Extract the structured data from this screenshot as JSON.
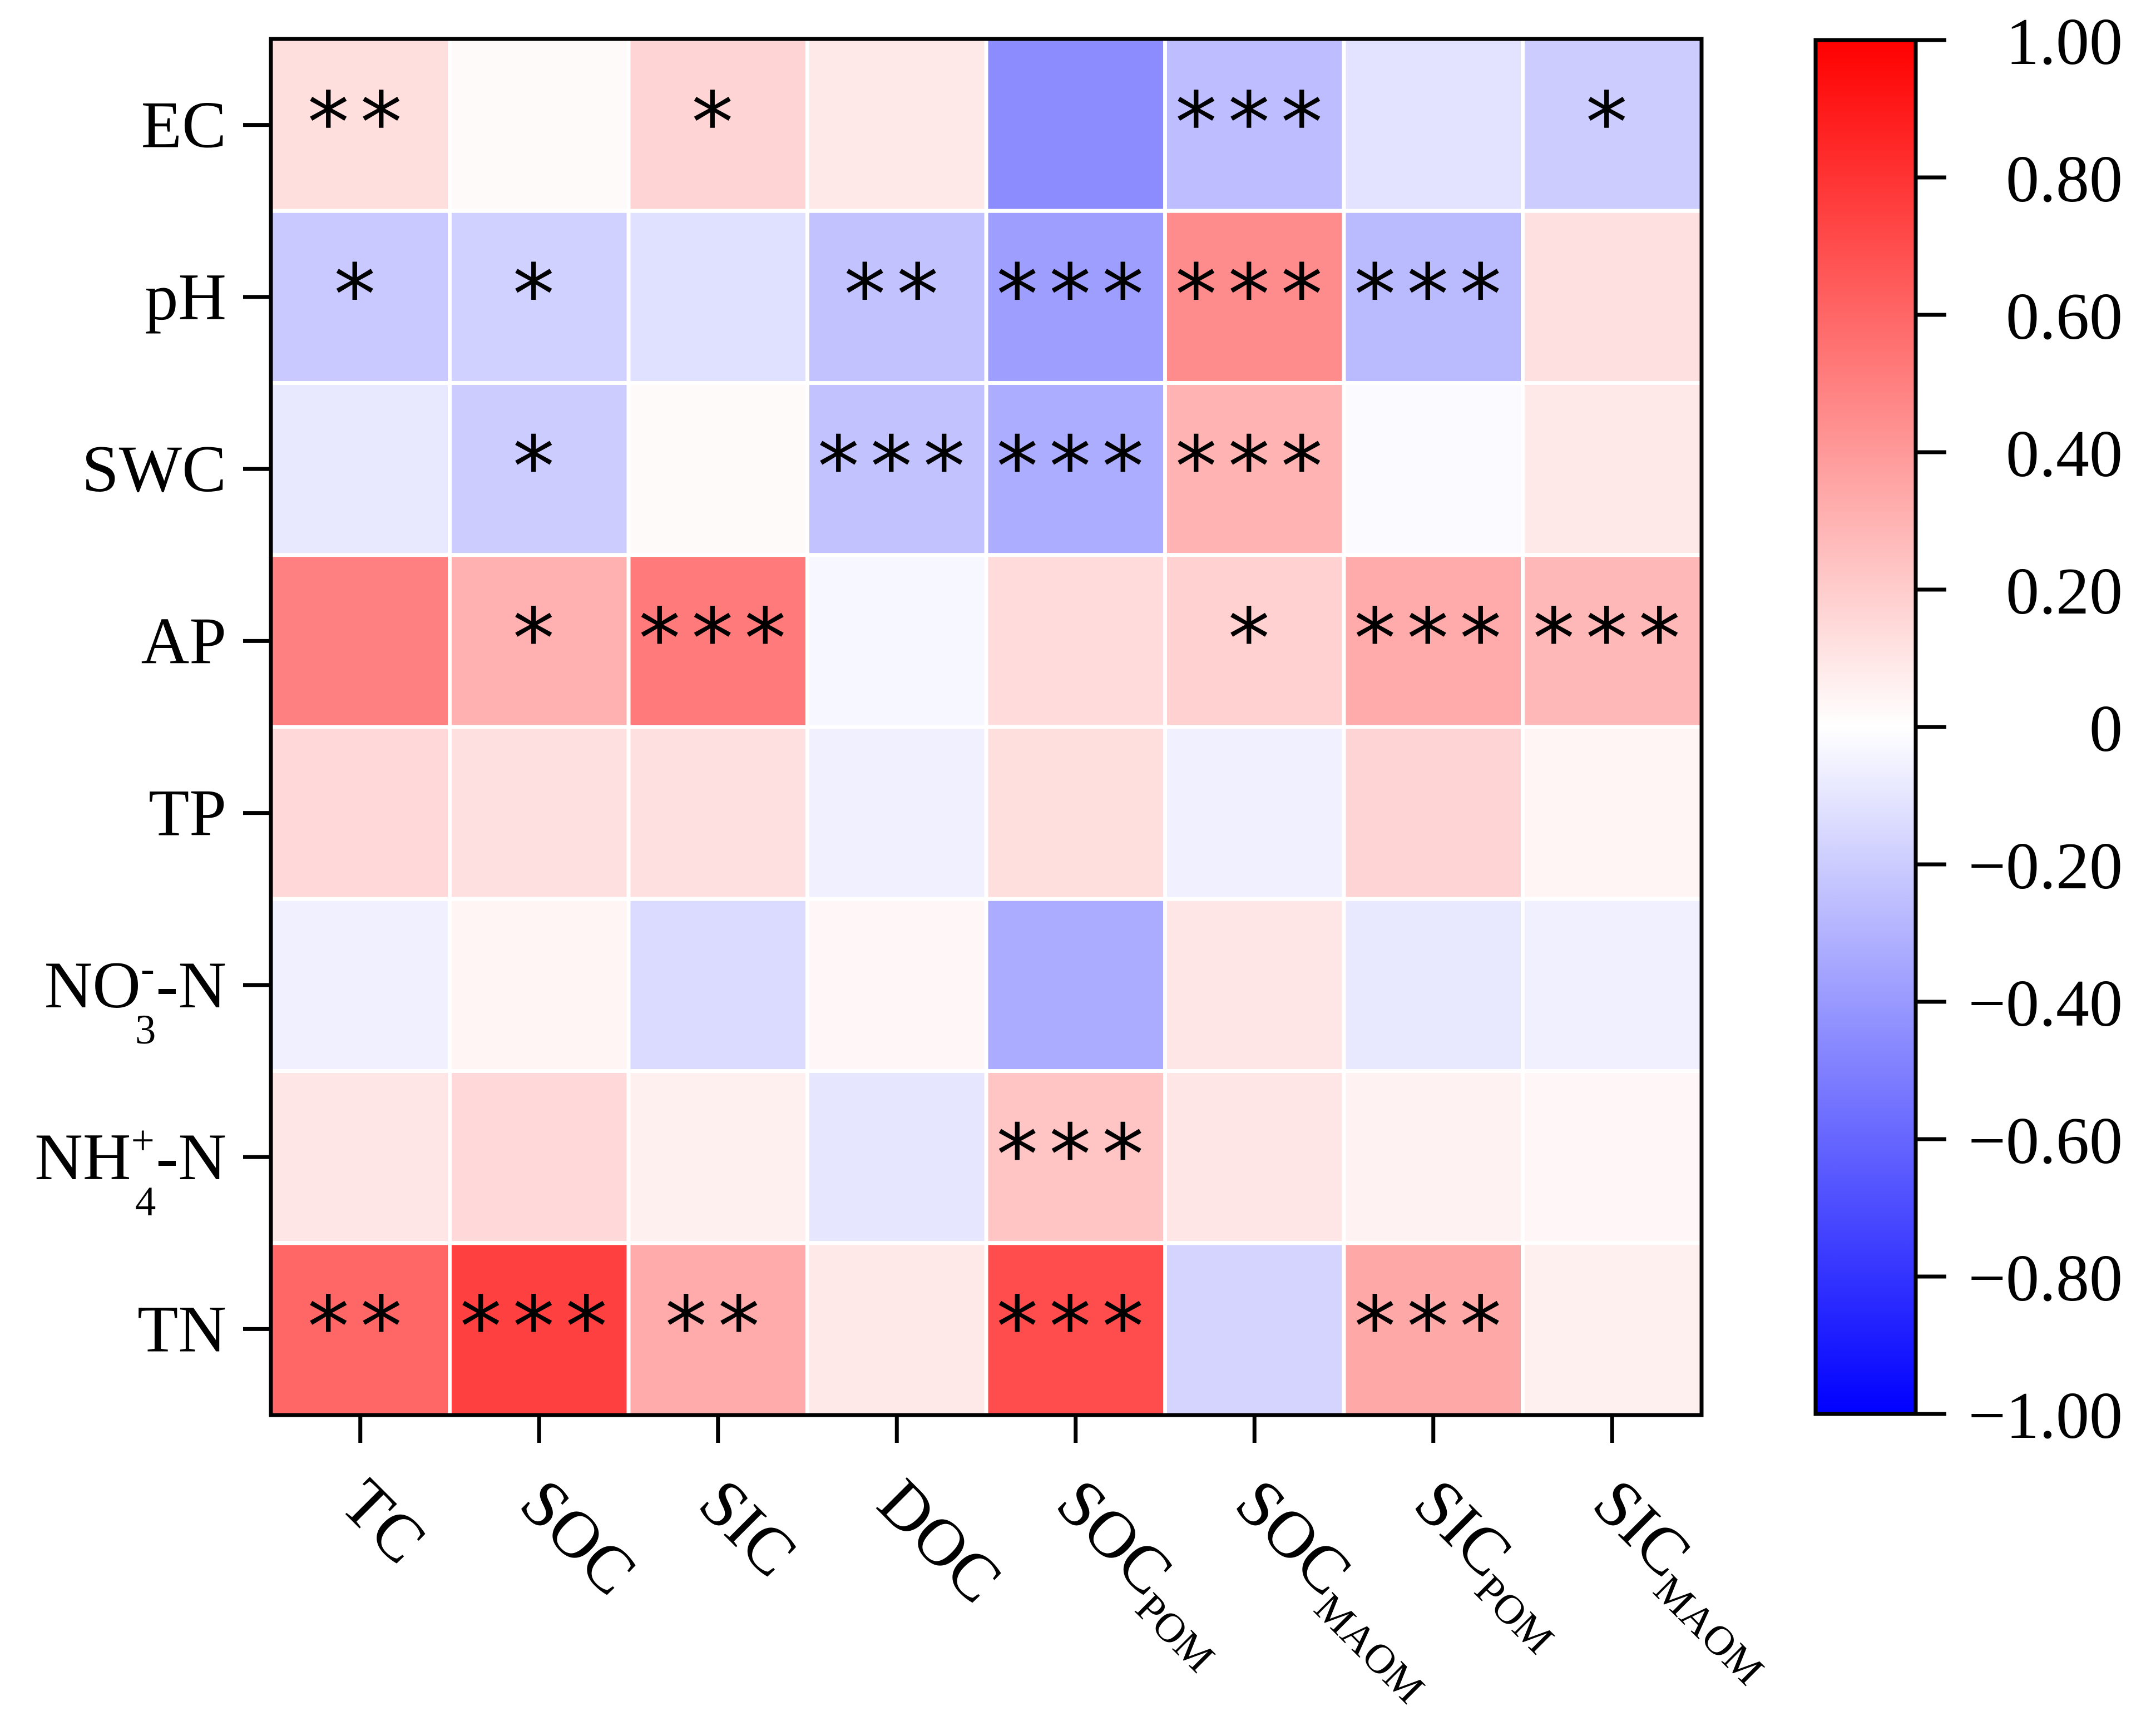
{
  "chart_data": {
    "type": "heatmap",
    "rows": [
      {
        "label": "EC"
      },
      {
        "label": "pH"
      },
      {
        "label": "SWC"
      },
      {
        "label": "AP"
      },
      {
        "label": "TP"
      },
      {
        "label": "NO",
        "sup": "-",
        "sub": "3",
        "suffix": "-N"
      },
      {
        "label": "NH",
        "sup": "+",
        "sub": "4",
        "suffix": "-N"
      },
      {
        "label": "TN"
      }
    ],
    "columns": [
      {
        "label": "TC"
      },
      {
        "label": "SOC"
      },
      {
        "label": "SIC"
      },
      {
        "label": "DOC"
      },
      {
        "label": "SOC",
        "sub": "POM"
      },
      {
        "label": "SOC",
        "sub": "MAOM"
      },
      {
        "label": "SIC",
        "sub": "POM"
      },
      {
        "label": "SIC",
        "sub": "MAOM"
      }
    ],
    "values": [
      [
        0.13,
        0.02,
        0.17,
        0.09,
        -0.45,
        -0.26,
        -0.11,
        -0.2
      ],
      [
        -0.21,
        -0.18,
        -0.12,
        -0.24,
        -0.38,
        0.45,
        -0.27,
        0.12
      ],
      [
        -0.09,
        -0.2,
        0.02,
        -0.24,
        -0.32,
        0.3,
        -0.02,
        0.09
      ],
      [
        0.5,
        0.31,
        0.52,
        -0.03,
        0.14,
        0.18,
        0.33,
        0.28
      ],
      [
        0.15,
        0.12,
        0.12,
        -0.06,
        0.13,
        -0.06,
        0.17,
        0.04
      ],
      [
        -0.06,
        0.04,
        -0.14,
        0.03,
        -0.33,
        0.1,
        -0.09,
        -0.06
      ],
      [
        0.1,
        0.15,
        0.06,
        -0.1,
        0.23,
        0.1,
        0.05,
        0.03
      ],
      [
        0.6,
        0.75,
        0.33,
        0.09,
        0.7,
        -0.17,
        0.34,
        0.06
      ]
    ],
    "significance": [
      [
        "**",
        "",
        "*",
        "",
        "",
        "***",
        "",
        "*"
      ],
      [
        "*",
        "*",
        "",
        "**",
        "***",
        "***",
        "***",
        ""
      ],
      [
        "",
        "*",
        "",
        "***",
        "***",
        "***",
        "",
        ""
      ],
      [
        "",
        "*",
        "***",
        "",
        "",
        "*",
        "***",
        "***"
      ],
      [
        "",
        "",
        "",
        "",
        "",
        "",
        "",
        ""
      ],
      [
        "",
        "",
        "",
        "",
        "",
        "",
        "",
        ""
      ],
      [
        "",
        "",
        "",
        "",
        "***",
        "",
        "",
        ""
      ],
      [
        "**",
        "***",
        "**",
        "",
        "***",
        "",
        "***",
        ""
      ]
    ],
    "colorbar": {
      "min": -1.0,
      "max": 1.0,
      "low_color": "#0000ff",
      "mid_color": "#ffffff",
      "high_color": "#ff0000",
      "ticks": [
        {
          "value": 1.0,
          "label": "1.00"
        },
        {
          "value": 0.8,
          "label": "0.80"
        },
        {
          "value": 0.6,
          "label": "0.60"
        },
        {
          "value": 0.4,
          "label": "0.40"
        },
        {
          "value": 0.2,
          "label": "0.20"
        },
        {
          "value": 0.0,
          "label": "0"
        },
        {
          "value": -0.2,
          "label": "−0.20"
        },
        {
          "value": -0.4,
          "label": "−0.40"
        },
        {
          "value": -0.6,
          "label": "−0.60"
        },
        {
          "value": -0.8,
          "label": "−0.80"
        },
        {
          "value": -1.0,
          "label": "−1.00"
        }
      ]
    },
    "title": "",
    "xlabel": "",
    "ylabel": "",
    "grid": false,
    "legend": "colorbar-right"
  }
}
